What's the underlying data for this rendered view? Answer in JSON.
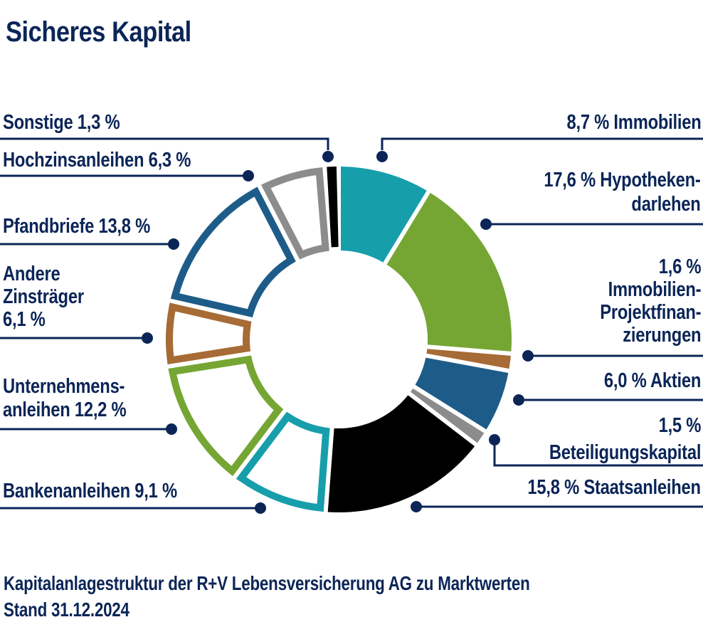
{
  "title": "Sicheres Kapital",
  "footer": {
    "line1": "Kapitalanlagestruktur der R+V Lebensversicherung AG zu Marktwerten",
    "line2": "Stand 31.12.2024"
  },
  "palette": {
    "teal": "#179EAB",
    "green": "#75A633",
    "brown": "#A76B35",
    "blue": "#1D5C88",
    "gray": "#8C8C8C",
    "black": "#000000",
    "navy": "#0B2557",
    "background": "#FFFFFF"
  },
  "chart_data": {
    "type": "pie",
    "subtype": "donut",
    "title": "Sicheres Kapital",
    "unit": "%",
    "start_angle_deg": 0,
    "direction": "clockwise",
    "total": 100,
    "legend_position": "callout-labels",
    "segments": [
      {
        "label": "Immobilien",
        "value": 8.7,
        "display_value": "8,7 %",
        "color": "teal",
        "render": "filled"
      },
      {
        "label": "Hypothekendarlehen",
        "value": 17.6,
        "display_value": "17,6 %",
        "color": "green",
        "render": "filled"
      },
      {
        "label": "Immobilien-Projektfinanzierungen",
        "value": 1.6,
        "display_value": "1,6 %",
        "color": "brown",
        "render": "filled"
      },
      {
        "label": "Aktien",
        "value": 6.0,
        "display_value": "6,0 %",
        "color": "blue",
        "render": "filled"
      },
      {
        "label": "Beteiligungskapital",
        "value": 1.5,
        "display_value": "1,5 %",
        "color": "gray",
        "render": "filled"
      },
      {
        "label": "Staatsanleihen",
        "value": 15.8,
        "display_value": "15,8 %",
        "color": "black",
        "render": "filled"
      },
      {
        "label": "Bankenanleihen",
        "value": 9.1,
        "display_value": "9,1 %",
        "color": "teal",
        "render": "outlined"
      },
      {
        "label": "Unternehmensanleihen",
        "value": 12.2,
        "display_value": "12,2 %",
        "color": "green",
        "render": "outlined"
      },
      {
        "label": "Andere Zinsträger",
        "value": 6.1,
        "display_value": "6,1 %",
        "color": "brown",
        "render": "outlined"
      },
      {
        "label": "Pfandbriefe",
        "value": 13.8,
        "display_value": "13,8 %",
        "color": "blue",
        "render": "outlined"
      },
      {
        "label": "Hochzinsanleihen",
        "value": 6.3,
        "display_value": "6,3 %",
        "color": "gray",
        "render": "outlined"
      },
      {
        "label": "Sonstige",
        "value": 1.3,
        "display_value": "1,3 %",
        "color": "black",
        "render": "outlined"
      }
    ]
  },
  "labels": {
    "left": [
      {
        "lines": [
          "Sonstige 1,3 %"
        ]
      },
      {
        "lines": [
          "Hochzinsanleihen 6,3 %"
        ]
      },
      {
        "lines": [
          "Pfandbriefe 13,8 %"
        ]
      },
      {
        "lines": [
          "Andere",
          "Zinsträger",
          "6,1 %"
        ]
      },
      {
        "lines": [
          "Unternehmens-",
          "anleihen 12,2 %"
        ]
      },
      {
        "lines": [
          "Bankenanleihen 9,1 %"
        ]
      }
    ],
    "right": [
      {
        "lines": [
          "8,7 % Immobilien"
        ]
      },
      {
        "lines": [
          "17,6 % Hypotheken-",
          "darlehen"
        ]
      },
      {
        "lines": [
          "1,6 %",
          "Immobilien-",
          "Projektfinan-",
          "zierungen"
        ]
      },
      {
        "lines": [
          "6,0 % Aktien"
        ]
      },
      {
        "lines": [
          "1,5 %",
          "Beteiligungskapital"
        ]
      },
      {
        "lines": [
          "15,8 % Staatsanleihen"
        ]
      }
    ]
  }
}
